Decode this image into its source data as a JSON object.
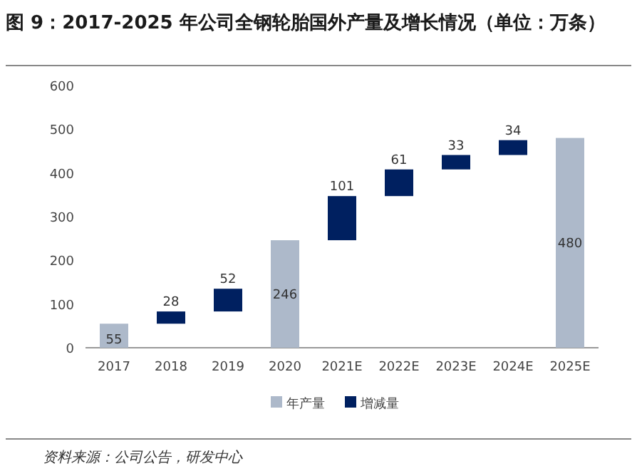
{
  "chart_data": {
    "type": "bar",
    "title": "图 9：2017-2025 年公司全钢轮胎国外产量及增长情况（单位：万条）",
    "categories": [
      "2017",
      "2018",
      "2019",
      "2020",
      "2021E",
      "2022E",
      "2023E",
      "2024E",
      "2025E"
    ],
    "series": [
      {
        "name": "年产量",
        "color": "#adb9ca",
        "values": [
          55,
          null,
          null,
          246,
          null,
          null,
          null,
          null,
          480
        ]
      },
      {
        "name": "增减量",
        "color": "#002060",
        "values": [
          null,
          28,
          52,
          null,
          101,
          61,
          33,
          34,
          null
        ],
        "base": [
          null,
          55,
          83,
          null,
          246,
          347,
          408,
          441,
          null
        ]
      }
    ],
    "ylim": [
      0,
      600
    ],
    "yticks": [
      0,
      100,
      200,
      300,
      400,
      500,
      600
    ],
    "data_labels": true,
    "legend": "bottom",
    "annotations": [
      "资料来源：公司公告，研发中心"
    ]
  }
}
